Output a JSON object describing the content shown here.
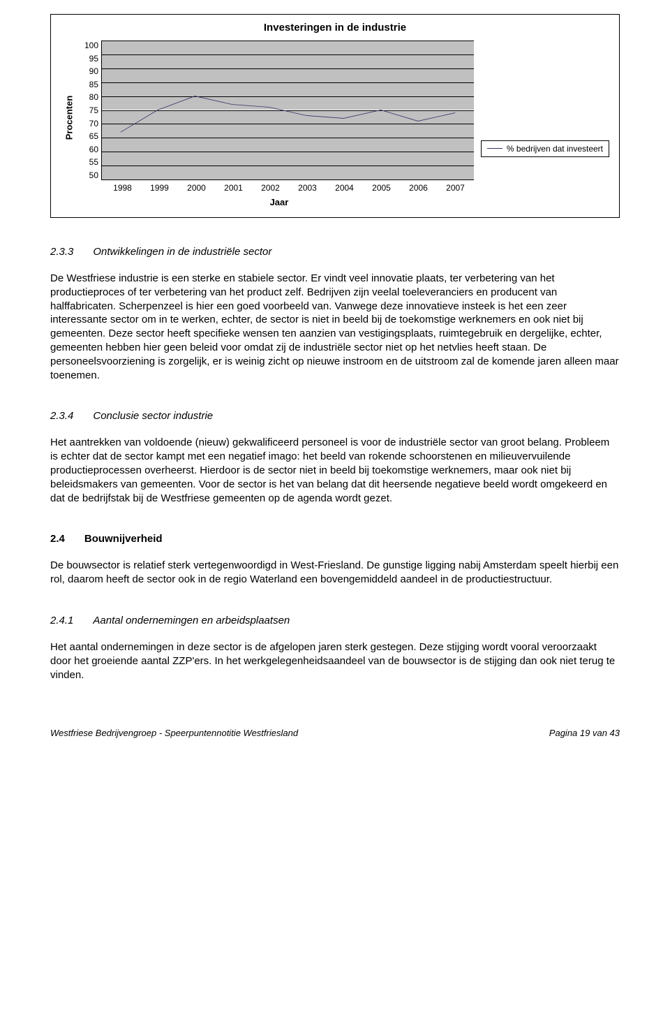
{
  "chart": {
    "type": "line",
    "title": "Investeringen in de industrie",
    "ylabel": "Procenten",
    "xlabel": "Jaar",
    "legend_label": "% bedrijven dat investeert",
    "x_categories": [
      "1998",
      "1999",
      "2000",
      "2001",
      "2002",
      "2003",
      "2004",
      "2005",
      "2006",
      "2007"
    ],
    "y_ticks": [
      100,
      95,
      90,
      85,
      80,
      75,
      70,
      65,
      60,
      55,
      50
    ],
    "ylim_min": 50,
    "ylim_max": 100,
    "values": [
      67,
      75,
      80,
      77,
      76,
      73,
      72,
      75,
      71,
      74
    ],
    "line_color": "#333366",
    "band_color": "#c0c0c0",
    "grid_color": "#000000",
    "background": "#ffffff"
  },
  "sec233": {
    "num": "2.3.3",
    "title": "Ontwikkelingen in de industriële sector",
    "p1": "De Westfriese industrie is een sterke en stabiele sector. Er vindt veel innovatie plaats, ter verbetering van het productieproces of ter verbetering van het product zelf. Bedrijven zijn veelal toeleveranciers en producent van halffabricaten. Scherpenzeel is hier een goed voorbeeld van. Vanwege deze innovatieve insteek is het een zeer interessante sector om in te werken, echter, de sector is niet in beeld bij de toekomstige werknemers en ook niet bij gemeenten. Deze sector heeft specifieke wensen ten aanzien van vestigingsplaats, ruimtegebruik en dergelijke, echter, gemeenten hebben hier geen beleid voor omdat zij de industriële sector niet op het netvlies heeft staan. De personeelsvoorziening is zorgelijk, er is weinig zicht op nieuwe instroom en de uitstroom zal de komende jaren alleen maar toenemen."
  },
  "sec234": {
    "num": "2.3.4",
    "title": "Conclusie sector industrie",
    "p1": "Het aantrekken van voldoende (nieuw) gekwalificeerd personeel is voor de industriële sector van groot belang. Probleem is echter dat de sector kampt met een negatief imago: het beeld van rokende schoorstenen en milieuvervuilende productieprocessen overheerst. Hierdoor is de sector niet in beeld bij toekomstige werknemers, maar ook niet bij beleidsmakers van gemeenten. Voor de sector is het van belang dat dit heersende negatieve beeld wordt omgekeerd en dat de bedrijfstak bij de Westfriese gemeenten op de agenda wordt gezet."
  },
  "sec24": {
    "num": "2.4",
    "title": "Bouwnijverheid",
    "p1": "De bouwsector is relatief sterk vertegenwoordigd in West-Friesland. De gunstige ligging nabij Amsterdam speelt hierbij een rol, daarom heeft de sector ook in de regio Waterland een bovengemiddeld aandeel in de productiestructuur."
  },
  "sec241": {
    "num": "2.4.1",
    "title": "Aantal ondernemingen en arbeidsplaatsen",
    "p1": "Het aantal ondernemingen in deze sector is de afgelopen jaren sterk gestegen. Deze stijging wordt vooral veroorzaakt door het groeiende aantal ZZP'ers. In het werkgelegenheidsaandeel van de bouwsector is de stijging dan ook niet terug te vinden."
  },
  "footer": {
    "left": "Westfriese Bedrijvengroep - Speerpuntennotitie Westfriesland",
    "right": "Pagina 19 van 43"
  }
}
